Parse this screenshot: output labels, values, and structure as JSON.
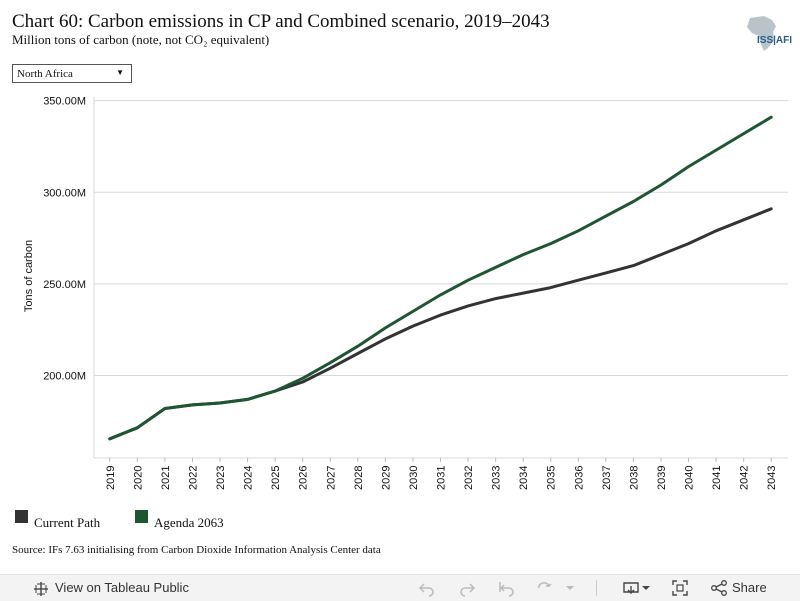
{
  "header": {
    "title": "Chart 60: Carbon emissions in CP and Combined scenario, 2019–2043",
    "subtitle": "Million tons of carbon (note, not CO₂ equivalent)",
    "logo_text": "ISS|AFI"
  },
  "filter": {
    "selected": "North Africa"
  },
  "source": "Source: IFs 7.63 initialising from Carbon Dioxide Information Analysis Center data",
  "footer": {
    "view_label": "View on Tableau Public",
    "share_label": "Share"
  },
  "chart_data": {
    "type": "line",
    "ylabel": "Tons of carbon",
    "ylim": [
      155,
      352
    ],
    "yticks": [
      200,
      250,
      300,
      350
    ],
    "ytick_labels": [
      "200.00M",
      "250.00M",
      "300.00M",
      "350.00M"
    ],
    "grid": true,
    "legend_position": "bottom-left",
    "x": [
      "2019",
      "2020",
      "2021",
      "2022",
      "2023",
      "2024",
      "2025",
      "2026",
      "2027",
      "2028",
      "2029",
      "2030",
      "2031",
      "2032",
      "2033",
      "2034",
      "2035",
      "2036",
      "2037",
      "2038",
      "2039",
      "2040",
      "2041",
      "2042",
      "2043"
    ],
    "series": [
      {
        "name": "Current Path",
        "color": "#333333",
        "values": [
          165.5,
          171.5,
          182.0,
          184.0,
          185.0,
          187.0,
          191.5,
          196.5,
          204.0,
          212.0,
          220.0,
          227.0,
          233.0,
          238.0,
          242.0,
          245.0,
          248.0,
          252.0,
          256.0,
          260.0,
          266.0,
          272.0,
          279.0,
          285.0,
          291.0
        ]
      },
      {
        "name": "Agenda 2063",
        "color": "#1e5631",
        "values": [
          165.5,
          171.5,
          182.0,
          184.0,
          185.0,
          187.0,
          191.5,
          198.5,
          207.0,
          216.0,
          226.0,
          235.0,
          244.0,
          252.0,
          259.0,
          266.0,
          272.0,
          279.0,
          287.0,
          295.0,
          304.0,
          314.0,
          323.0,
          332.0,
          341.0
        ]
      }
    ]
  }
}
